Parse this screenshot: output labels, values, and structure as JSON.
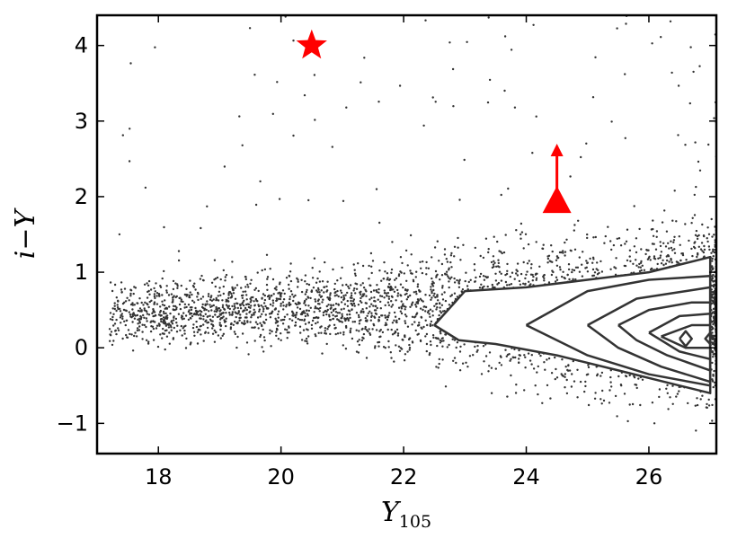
{
  "chart_data": {
    "type": "scatter",
    "xlabel": "Y",
    "xlabel_subscript": "105",
    "ylabel": "i−Y",
    "xlim": [
      17.0,
      27.1
    ],
    "ylim": [
      -1.4,
      4.4
    ],
    "xticks": [
      18,
      20,
      22,
      24,
      26
    ],
    "xtick_labels": [
      "18",
      "20",
      "22",
      "24",
      "26"
    ],
    "yticks": [
      -1,
      0,
      1,
      2,
      3,
      4
    ],
    "ytick_labels": [
      "−1",
      "0",
      "1",
      "2",
      "3",
      "4"
    ],
    "grid": false,
    "colors": {
      "points": "#333333",
      "contours": "#333333",
      "highlight": "#ff0000",
      "axes": "#000000"
    },
    "highlights": [
      {
        "marker": "star",
        "x": 20.5,
        "y": 4.0
      },
      {
        "marker": "triangle-lower-limit",
        "x": 24.5,
        "y": 1.95,
        "arrow_to_y": 2.7
      }
    ],
    "point_cloud_trend": [
      {
        "x": 17.5,
        "y_center": 0.45,
        "y_spread": 0.3
      },
      {
        "x": 19.0,
        "y_center": 0.5,
        "y_spread": 0.3
      },
      {
        "x": 20.5,
        "y_center": 0.55,
        "y_spread": 0.35
      },
      {
        "x": 22.0,
        "y_center": 0.55,
        "y_spread": 0.45
      },
      {
        "x": 23.5,
        "y_center": 0.5,
        "y_spread": 0.6
      },
      {
        "x": 25.0,
        "y_center": 0.45,
        "y_spread": 0.7
      },
      {
        "x": 26.5,
        "y_center": 0.45,
        "y_spread": 0.75
      }
    ],
    "contours": [
      [
        [
          22.5,
          0.3
        ],
        [
          23.0,
          0.75
        ],
        [
          24.0,
          0.8
        ],
        [
          25.0,
          0.9
        ],
        [
          26.0,
          1.0
        ],
        [
          27.0,
          1.2
        ],
        [
          27.0,
          -0.6
        ],
        [
          26.5,
          -0.5
        ],
        [
          25.5,
          -0.3
        ],
        [
          24.5,
          -0.1
        ],
        [
          23.5,
          0.05
        ],
        [
          22.9,
          0.1
        ],
        [
          22.5,
          0.3
        ]
      ],
      [
        [
          24.0,
          0.3
        ],
        [
          25.0,
          0.75
        ],
        [
          26.0,
          0.9
        ],
        [
          27.0,
          0.95
        ],
        [
          27.0,
          -0.5
        ],
        [
          26.0,
          -0.35
        ],
        [
          25.0,
          -0.1
        ],
        [
          24.0,
          0.3
        ]
      ],
      [
        [
          25.0,
          0.3
        ],
        [
          25.8,
          0.65
        ],
        [
          26.6,
          0.75
        ],
        [
          27.0,
          0.8
        ],
        [
          27.0,
          -0.45
        ],
        [
          26.2,
          -0.25
        ],
        [
          25.5,
          0.0
        ],
        [
          25.0,
          0.3
        ]
      ],
      [
        [
          25.5,
          0.3
        ],
        [
          26.0,
          0.5
        ],
        [
          26.7,
          0.6
        ],
        [
          27.0,
          0.6
        ],
        [
          27.0,
          -0.3
        ],
        [
          26.3,
          -0.1
        ],
        [
          25.8,
          0.1
        ],
        [
          25.5,
          0.3
        ]
      ],
      [
        [
          26.0,
          0.2
        ],
        [
          26.5,
          0.42
        ],
        [
          27.0,
          0.45
        ],
        [
          27.0,
          -0.15
        ],
        [
          26.5,
          -0.05
        ],
        [
          26.0,
          0.2
        ]
      ],
      [
        [
          26.2,
          0.15
        ],
        [
          26.7,
          0.3
        ],
        [
          27.0,
          0.3
        ],
        [
          27.0,
          0.0
        ],
        [
          26.6,
          0.0
        ],
        [
          26.2,
          0.15
        ]
      ],
      [
        [
          26.5,
          0.12
        ],
        [
          26.6,
          0.22
        ],
        [
          26.7,
          0.12
        ],
        [
          26.6,
          0.02
        ],
        [
          26.5,
          0.12
        ]
      ],
      [
        [
          27.0,
          0.2
        ],
        [
          26.92,
          0.12
        ],
        [
          27.0,
          0.05
        ]
      ]
    ]
  }
}
